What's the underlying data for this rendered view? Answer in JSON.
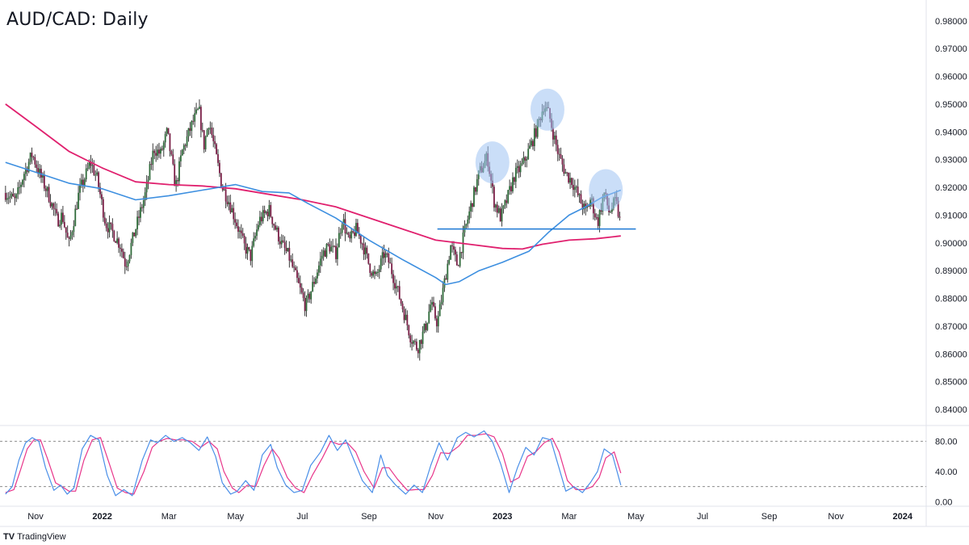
{
  "chart_data": {
    "type": "candlestick",
    "title": "AUD/CAD: Daily",
    "price_axis": {
      "ticks": [
        "0.98000",
        "0.97000",
        "0.96000",
        "0.95000",
        "0.94000",
        "0.93000",
        "0.92000",
        "0.91000",
        "0.90000",
        "0.89000",
        "0.88000",
        "0.87000",
        "0.86000",
        "0.85000",
        "0.84000"
      ],
      "range": [
        0.8345,
        0.9875
      ]
    },
    "time_axis": {
      "labels": [
        {
          "text": "Nov",
          "month": 0,
          "year": false
        },
        {
          "text": "2022",
          "month": 2,
          "year": true
        },
        {
          "text": "Mar",
          "month": 4,
          "year": false
        },
        {
          "text": "May",
          "month": 6,
          "year": false
        },
        {
          "text": "Jul",
          "month": 8,
          "year": false
        },
        {
          "text": "Sep",
          "month": 10,
          "year": false
        },
        {
          "text": "Nov",
          "month": 12,
          "year": false
        },
        {
          "text": "2023",
          "month": 14,
          "year": true
        },
        {
          "text": "Mar",
          "month": 16,
          "year": false
        },
        {
          "text": "May",
          "month": 18,
          "year": false
        },
        {
          "text": "Jul",
          "month": 20,
          "year": false
        },
        {
          "text": "Sep",
          "month": 22,
          "year": false
        },
        {
          "text": "Nov",
          "month": 24,
          "year": false
        },
        {
          "text": "2024",
          "month": 26,
          "year": true
        }
      ]
    },
    "price_path": [
      [
        -0.9,
        0.918
      ],
      [
        -0.6,
        0.915
      ],
      [
        -0.35,
        0.925
      ],
      [
        -0.1,
        0.932
      ],
      [
        0.15,
        0.924
      ],
      [
        0.4,
        0.917
      ],
      [
        0.65,
        0.908
      ],
      [
        0.8,
        0.91
      ],
      [
        1.0,
        0.899
      ],
      [
        1.3,
        0.918
      ],
      [
        1.65,
        0.929
      ],
      [
        1.85,
        0.923
      ],
      [
        2.1,
        0.907
      ],
      [
        2.3,
        0.904
      ],
      [
        2.55,
        0.899
      ],
      [
        2.7,
        0.892
      ],
      [
        3.0,
        0.905
      ],
      [
        3.3,
        0.918
      ],
      [
        3.55,
        0.934
      ],
      [
        3.75,
        0.932
      ],
      [
        3.95,
        0.94
      ],
      [
        4.2,
        0.92
      ],
      [
        4.4,
        0.933
      ],
      [
        4.7,
        0.943
      ],
      [
        4.9,
        0.948
      ],
      [
        5.05,
        0.935
      ],
      [
        5.2,
        0.944
      ],
      [
        5.4,
        0.932
      ],
      [
        5.6,
        0.92
      ],
      [
        5.8,
        0.915
      ],
      [
        6.0,
        0.908
      ],
      [
        6.25,
        0.899
      ],
      [
        6.45,
        0.895
      ],
      [
        6.7,
        0.908
      ],
      [
        7.0,
        0.912
      ],
      [
        7.2,
        0.905
      ],
      [
        7.4,
        0.899
      ],
      [
        7.6,
        0.895
      ],
      [
        7.85,
        0.886
      ],
      [
        8.1,
        0.877
      ],
      [
        8.35,
        0.886
      ],
      [
        8.6,
        0.896
      ],
      [
        8.8,
        0.899
      ],
      [
        9.0,
        0.896
      ],
      [
        9.2,
        0.909
      ],
      [
        9.4,
        0.9
      ],
      [
        9.6,
        0.905
      ],
      [
        9.8,
        0.9
      ],
      [
        10.0,
        0.892
      ],
      [
        10.2,
        0.887
      ],
      [
        10.45,
        0.896
      ],
      [
        10.6,
        0.893
      ],
      [
        10.8,
        0.885
      ],
      [
        11.0,
        0.877
      ],
      [
        11.25,
        0.866
      ],
      [
        11.45,
        0.862
      ],
      [
        11.7,
        0.87
      ],
      [
        11.85,
        0.878
      ],
      [
        12.05,
        0.871
      ],
      [
        12.25,
        0.885
      ],
      [
        12.45,
        0.899
      ],
      [
        12.65,
        0.892
      ],
      [
        12.85,
        0.903
      ],
      [
        13.05,
        0.913
      ],
      [
        13.3,
        0.925
      ],
      [
        13.55,
        0.931
      ],
      [
        13.75,
        0.915
      ],
      [
        13.95,
        0.909
      ],
      [
        14.15,
        0.916
      ],
      [
        14.35,
        0.924
      ],
      [
        14.6,
        0.928
      ],
      [
        14.85,
        0.935
      ],
      [
        15.05,
        0.942
      ],
      [
        15.25,
        0.95
      ],
      [
        15.4,
        0.946
      ],
      [
        15.55,
        0.938
      ],
      [
        15.7,
        0.931
      ],
      [
        15.9,
        0.925
      ],
      [
        16.1,
        0.922
      ],
      [
        16.3,
        0.916
      ],
      [
        16.5,
        0.911
      ],
      [
        16.65,
        0.916
      ],
      [
        16.85,
        0.907
      ],
      [
        17.05,
        0.918
      ],
      [
        17.2,
        0.911
      ],
      [
        17.4,
        0.915
      ],
      [
        17.55,
        0.906
      ]
    ],
    "ma_blue": [
      [
        -0.9,
        0.929
      ],
      [
        0.0,
        0.9255
      ],
      [
        1.0,
        0.9215
      ],
      [
        2.0,
        0.9195
      ],
      [
        3.0,
        0.9155
      ],
      [
        4.0,
        0.917
      ],
      [
        5.0,
        0.919
      ],
      [
        6.0,
        0.921
      ],
      [
        6.8,
        0.9185
      ],
      [
        7.6,
        0.918
      ],
      [
        8.2,
        0.914
      ],
      [
        9.0,
        0.909
      ],
      [
        10.0,
        0.901
      ],
      [
        11.0,
        0.894
      ],
      [
        12.0,
        0.8875
      ],
      [
        12.3,
        0.885
      ],
      [
        12.7,
        0.886
      ],
      [
        13.3,
        0.89
      ],
      [
        14.0,
        0.893
      ],
      [
        14.8,
        0.897
      ],
      [
        15.4,
        0.904
      ],
      [
        16.0,
        0.91
      ],
      [
        16.5,
        0.913
      ],
      [
        17.0,
        0.9165
      ],
      [
        17.55,
        0.919
      ]
    ],
    "ma_red": [
      [
        -0.9,
        0.95
      ],
      [
        0.0,
        0.942
      ],
      [
        1.0,
        0.933
      ],
      [
        2.0,
        0.927
      ],
      [
        3.0,
        0.922
      ],
      [
        4.0,
        0.921
      ],
      [
        5.0,
        0.9205
      ],
      [
        6.0,
        0.9195
      ],
      [
        7.0,
        0.9175
      ],
      [
        8.0,
        0.9155
      ],
      [
        9.0,
        0.913
      ],
      [
        10.0,
        0.909
      ],
      [
        11.0,
        0.905
      ],
      [
        12.0,
        0.901
      ],
      [
        13.0,
        0.8995
      ],
      [
        14.0,
        0.898
      ],
      [
        14.6,
        0.8978
      ],
      [
        15.2,
        0.8995
      ],
      [
        16.0,
        0.901
      ],
      [
        16.8,
        0.9015
      ],
      [
        17.55,
        0.9025
      ]
    ],
    "neckline": {
      "price": 0.905,
      "from_month": 12.05,
      "to_month": 18.0
    },
    "highlights": [
      {
        "label": "left-shoulder",
        "month": 13.7,
        "price": 0.929
      },
      {
        "label": "head",
        "month": 15.35,
        "price": 0.948
      },
      {
        "label": "right-shoulder",
        "month": 17.1,
        "price": 0.919
      }
    ],
    "oscillator": {
      "ticks": [
        "80.00",
        "40.00",
        "0.00"
      ],
      "range": [
        -5,
        100
      ],
      "levels": [
        80,
        20
      ],
      "k_line": [
        [
          -0.9,
          10
        ],
        [
          -0.7,
          20
        ],
        [
          -0.5,
          55
        ],
        [
          -0.3,
          78
        ],
        [
          -0.1,
          85
        ],
        [
          0.1,
          80
        ],
        [
          0.3,
          45
        ],
        [
          0.55,
          15
        ],
        [
          0.75,
          22
        ],
        [
          0.95,
          10
        ],
        [
          1.15,
          18
        ],
        [
          1.4,
          70
        ],
        [
          1.65,
          88
        ],
        [
          1.9,
          82
        ],
        [
          2.15,
          35
        ],
        [
          2.4,
          8
        ],
        [
          2.65,
          16
        ],
        [
          2.9,
          8
        ],
        [
          3.2,
          55
        ],
        [
          3.45,
          82
        ],
        [
          3.65,
          78
        ],
        [
          3.9,
          88
        ],
        [
          4.15,
          80
        ],
        [
          4.4,
          85
        ],
        [
          4.65,
          78
        ],
        [
          4.9,
          68
        ],
        [
          5.15,
          86
        ],
        [
          5.4,
          60
        ],
        [
          5.6,
          25
        ],
        [
          5.85,
          10
        ],
        [
          6.05,
          14
        ],
        [
          6.3,
          28
        ],
        [
          6.55,
          15
        ],
        [
          6.8,
          62
        ],
        [
          7.05,
          76
        ],
        [
          7.25,
          45
        ],
        [
          7.5,
          22
        ],
        [
          7.75,
          12
        ],
        [
          8.0,
          15
        ],
        [
          8.25,
          48
        ],
        [
          8.55,
          66
        ],
        [
          8.8,
          88
        ],
        [
          9.05,
          68
        ],
        [
          9.3,
          82
        ],
        [
          9.55,
          55
        ],
        [
          9.8,
          28
        ],
        [
          10.1,
          12
        ],
        [
          10.35,
          62
        ],
        [
          10.55,
          35
        ],
        [
          10.8,
          22
        ],
        [
          11.1,
          10
        ],
        [
          11.35,
          22
        ],
        [
          11.6,
          12
        ],
        [
          11.85,
          48
        ],
        [
          12.1,
          78
        ],
        [
          12.35,
          55
        ],
        [
          12.65,
          85
        ],
        [
          12.9,
          92
        ],
        [
          13.15,
          86
        ],
        [
          13.45,
          94
        ],
        [
          13.7,
          80
        ],
        [
          13.95,
          50
        ],
        [
          14.2,
          12
        ],
        [
          14.45,
          45
        ],
        [
          14.7,
          72
        ],
        [
          14.95,
          62
        ],
        [
          15.2,
          85
        ],
        [
          15.45,
          82
        ],
        [
          15.65,
          52
        ],
        [
          15.9,
          14
        ],
        [
          16.15,
          20
        ],
        [
          16.4,
          12
        ],
        [
          16.65,
          26
        ],
        [
          16.85,
          40
        ],
        [
          17.05,
          70
        ],
        [
          17.3,
          62
        ],
        [
          17.55,
          22
        ]
      ],
      "d_line": [
        [
          -0.9,
          12
        ],
        [
          -0.65,
          16
        ],
        [
          -0.45,
          42
        ],
        [
          -0.25,
          70
        ],
        [
          -0.05,
          82
        ],
        [
          0.15,
          82
        ],
        [
          0.35,
          58
        ],
        [
          0.6,
          25
        ],
        [
          0.8,
          20
        ],
        [
          1.0,
          14
        ],
        [
          1.2,
          14
        ],
        [
          1.45,
          55
        ],
        [
          1.7,
          82
        ],
        [
          1.95,
          85
        ],
        [
          2.2,
          52
        ],
        [
          2.45,
          18
        ],
        [
          2.7,
          12
        ],
        [
          2.95,
          10
        ],
        [
          3.25,
          40
        ],
        [
          3.5,
          72
        ],
        [
          3.7,
          80
        ],
        [
          3.95,
          84
        ],
        [
          4.2,
          82
        ],
        [
          4.45,
          82
        ],
        [
          4.7,
          80
        ],
        [
          4.95,
          72
        ],
        [
          5.2,
          80
        ],
        [
          5.45,
          70
        ],
        [
          5.65,
          40
        ],
        [
          5.9,
          18
        ],
        [
          6.1,
          12
        ],
        [
          6.35,
          22
        ],
        [
          6.6,
          20
        ],
        [
          6.85,
          48
        ],
        [
          7.1,
          70
        ],
        [
          7.3,
          58
        ],
        [
          7.55,
          32
        ],
        [
          7.8,
          18
        ],
        [
          8.05,
          12
        ],
        [
          8.3,
          35
        ],
        [
          8.6,
          58
        ],
        [
          8.85,
          80
        ],
        [
          9.1,
          76
        ],
        [
          9.35,
          78
        ],
        [
          9.6,
          66
        ],
        [
          9.85,
          40
        ],
        [
          10.15,
          18
        ],
        [
          10.4,
          45
        ],
        [
          10.6,
          45
        ],
        [
          10.85,
          30
        ],
        [
          11.15,
          15
        ],
        [
          11.4,
          16
        ],
        [
          11.65,
          16
        ],
        [
          11.9,
          35
        ],
        [
          12.15,
          65
        ],
        [
          12.4,
          64
        ],
        [
          12.7,
          74
        ],
        [
          12.95,
          88
        ],
        [
          13.2,
          88
        ],
        [
          13.5,
          90
        ],
        [
          13.75,
          86
        ],
        [
          14.0,
          64
        ],
        [
          14.25,
          26
        ],
        [
          14.5,
          32
        ],
        [
          14.75,
          60
        ],
        [
          15.0,
          66
        ],
        [
          15.25,
          78
        ],
        [
          15.5,
          84
        ],
        [
          15.7,
          66
        ],
        [
          15.95,
          28
        ],
        [
          16.2,
          16
        ],
        [
          16.45,
          16
        ],
        [
          16.7,
          20
        ],
        [
          16.9,
          32
        ],
        [
          17.1,
          58
        ],
        [
          17.35,
          66
        ],
        [
          17.55,
          38
        ]
      ]
    }
  },
  "branding": {
    "logo": "TV",
    "name": "TradingView"
  },
  "colors": {
    "bull_candle": "#2f6b3a",
    "bear_candle": "#7a1f47",
    "wick": "#3a3a3a",
    "ma_blue": "#3d8fe0",
    "ma_red": "#e0206e",
    "neckline": "#1b78d4",
    "highlight": "#9ec2f2",
    "k_line": "#4a8fe8",
    "d_line": "#e8358a",
    "grid_dashed": "#8c8c8c",
    "axis_border": "#e0e3eb"
  }
}
